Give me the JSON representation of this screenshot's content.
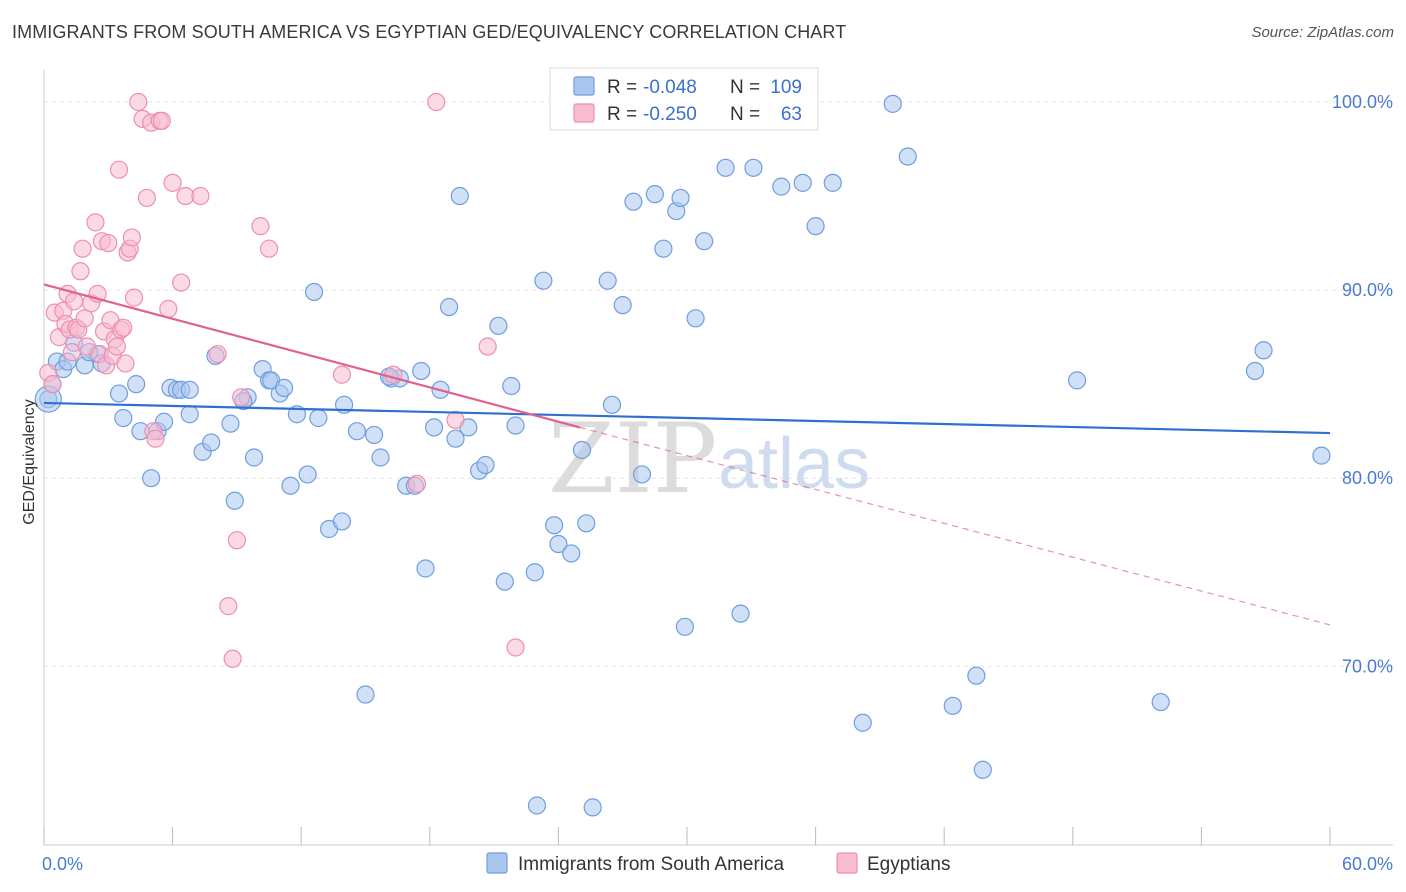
{
  "header": {
    "title": "IMMIGRANTS FROM SOUTH AMERICA VS EGYPTIAN GED/EQUIVALENCY CORRELATION CHART",
    "source": "Source: ZipAtlas.com"
  },
  "watermark": {
    "zip": "ZIP",
    "atlas": "atlas"
  },
  "colors": {
    "blue_fill": "#a9c6ee",
    "blue_stroke": "#6f9ee0",
    "blue_line": "#2f6fd0",
    "pink_fill": "#f7bcd0",
    "pink_stroke": "#ee8fb0",
    "pink_line": "#e0608e",
    "grid": "#e6e6e6",
    "tick_label": "#4a7bd0"
  },
  "legend": {
    "rows": [
      {
        "r_label": "R =",
        "r_value": "-0.048",
        "n_label": "N =",
        "n_value": "109"
      },
      {
        "r_label": "R =",
        "r_value": "-0.250",
        "n_label": "N =",
        "n_value": "63"
      }
    ]
  },
  "chart_data": {
    "type": "scatter",
    "title": "IMMIGRANTS FROM SOUTH AMERICA VS EGYPTIAN GED/EQUIVALENCY CORRELATION CHART",
    "xlabel": "",
    "ylabel": "GED/Equivalency",
    "xlim": [
      0,
      60
    ],
    "ylim": [
      60.5,
      101.7
    ],
    "x_tick_labels": [
      "0.0%",
      "60.0%"
    ],
    "y_ticks": [
      100,
      90,
      80,
      70
    ],
    "y_tick_labels": [
      "100.0%",
      "90.0%",
      "80.0%",
      "70.0%"
    ],
    "series": [
      {
        "name": "Immigrants from South America",
        "color": "blue",
        "trend": {
          "x0": 0,
          "y0": 84.0,
          "x1": 60,
          "y1": 82.4,
          "dashed_from": null
        },
        "points": [
          [
            0.2,
            84.2
          ],
          [
            0.6,
            86.2
          ],
          [
            0.9,
            85.8
          ],
          [
            1.4,
            87.2
          ],
          [
            1.9,
            86.0
          ],
          [
            2.5,
            86.6
          ],
          [
            2.7,
            86.1
          ],
          [
            3.5,
            84.5
          ],
          [
            3.7,
            83.2
          ],
          [
            4.3,
            85.0
          ],
          [
            4.5,
            82.5
          ],
          [
            5.0,
            80.0
          ],
          [
            5.3,
            82.5
          ],
          [
            5.6,
            83.0
          ],
          [
            5.9,
            84.8
          ],
          [
            6.2,
            84.7
          ],
          [
            6.4,
            84.7
          ],
          [
            6.8,
            83.4
          ],
          [
            7.4,
            81.4
          ],
          [
            7.8,
            81.9
          ],
          [
            8.0,
            86.5
          ],
          [
            8.7,
            82.9
          ],
          [
            8.9,
            78.8
          ],
          [
            9.5,
            84.3
          ],
          [
            9.8,
            81.1
          ],
          [
            10.2,
            85.8
          ],
          [
            10.5,
            85.2
          ],
          [
            11.0,
            84.5
          ],
          [
            11.5,
            79.6
          ],
          [
            11.8,
            83.4
          ],
          [
            12.3,
            80.2
          ],
          [
            12.6,
            89.9
          ],
          [
            12.8,
            83.2
          ],
          [
            13.3,
            77.3
          ],
          [
            13.9,
            77.7
          ],
          [
            14.0,
            83.9
          ],
          [
            14.6,
            82.5
          ],
          [
            15.0,
            68.5
          ],
          [
            15.4,
            82.3
          ],
          [
            15.7,
            81.1
          ],
          [
            16.2,
            85.3
          ],
          [
            16.6,
            85.3
          ],
          [
            16.9,
            79.6
          ],
          [
            17.3,
            79.6
          ],
          [
            17.6,
            85.7
          ],
          [
            17.8,
            75.2
          ],
          [
            18.2,
            82.7
          ],
          [
            18.5,
            84.7
          ],
          [
            18.9,
            89.1
          ],
          [
            19.2,
            82.1
          ],
          [
            19.4,
            95.0
          ],
          [
            19.8,
            82.7
          ],
          [
            20.3,
            80.4
          ],
          [
            20.6,
            80.7
          ],
          [
            21.2,
            88.1
          ],
          [
            21.5,
            74.5
          ],
          [
            21.8,
            84.9
          ],
          [
            22.0,
            82.8
          ],
          [
            22.9,
            75.0
          ],
          [
            23.0,
            62.6
          ],
          [
            23.3,
            90.5
          ],
          [
            23.8,
            77.5
          ],
          [
            24.0,
            76.5
          ],
          [
            24.6,
            76.0
          ],
          [
            25.1,
            81.5
          ],
          [
            25.3,
            77.6
          ],
          [
            25.6,
            62.5
          ],
          [
            26.3,
            90.5
          ],
          [
            26.5,
            83.9
          ],
          [
            27.0,
            89.2
          ],
          [
            27.5,
            94.7
          ],
          [
            27.9,
            80.2
          ],
          [
            28.5,
            95.1
          ],
          [
            28.9,
            92.2
          ],
          [
            29.5,
            94.2
          ],
          [
            29.7,
            94.9
          ],
          [
            29.9,
            72.1
          ],
          [
            30.4,
            88.5
          ],
          [
            30.8,
            92.6
          ],
          [
            31.8,
            96.5
          ],
          [
            32.5,
            72.8
          ],
          [
            33.1,
            96.5
          ],
          [
            34.4,
            95.5
          ],
          [
            35.4,
            95.7
          ],
          [
            36.0,
            93.4
          ],
          [
            36.8,
            95.7
          ],
          [
            38.2,
            67.0
          ],
          [
            39.6,
            99.9
          ],
          [
            40.3,
            97.1
          ],
          [
            42.4,
            67.9
          ],
          [
            43.5,
            69.5
          ],
          [
            43.8,
            64.5
          ],
          [
            48.2,
            85.2
          ],
          [
            52.1,
            68.1
          ],
          [
            56.5,
            85.7
          ],
          [
            56.9,
            86.8
          ],
          [
            59.6,
            81.2
          ],
          [
            0.4,
            85.0
          ],
          [
            1.1,
            86.2
          ],
          [
            2.1,
            86.7
          ],
          [
            6.8,
            84.7
          ],
          [
            9.3,
            84.1
          ],
          [
            10.6,
            85.2
          ],
          [
            11.2,
            84.8
          ],
          [
            16.1,
            85.4
          ]
        ]
      },
      {
        "name": "Egyptians",
        "color": "pink",
        "trend": {
          "x0": 0,
          "y0": 90.3,
          "x1": 25.0,
          "y1": 82.7,
          "dashed_from": 25.0,
          "dashed_to_x": 60,
          "dashed_to_y": 72.2
        },
        "points": [
          [
            0.2,
            85.6
          ],
          [
            0.4,
            85.0
          ],
          [
            0.5,
            88.8
          ],
          [
            0.7,
            87.5
          ],
          [
            0.9,
            88.9
          ],
          [
            1.0,
            88.2
          ],
          [
            1.1,
            89.8
          ],
          [
            1.2,
            87.9
          ],
          [
            1.3,
            86.7
          ],
          [
            1.4,
            89.4
          ],
          [
            1.5,
            88.0
          ],
          [
            1.6,
            87.9
          ],
          [
            1.7,
            91.0
          ],
          [
            1.8,
            92.2
          ],
          [
            1.9,
            88.5
          ],
          [
            2.0,
            87.0
          ],
          [
            2.2,
            89.3
          ],
          [
            2.4,
            93.6
          ],
          [
            2.5,
            89.8
          ],
          [
            2.6,
            86.6
          ],
          [
            2.7,
            92.6
          ],
          [
            2.8,
            87.8
          ],
          [
            2.9,
            86.0
          ],
          [
            3.0,
            92.5
          ],
          [
            3.1,
            88.4
          ],
          [
            3.2,
            86.5
          ],
          [
            3.3,
            87.4
          ],
          [
            3.4,
            87.0
          ],
          [
            3.5,
            96.4
          ],
          [
            3.6,
            87.9
          ],
          [
            3.7,
            88.0
          ],
          [
            3.8,
            86.1
          ],
          [
            3.9,
            92.0
          ],
          [
            4.0,
            92.2
          ],
          [
            4.1,
            92.8
          ],
          [
            4.2,
            89.6
          ],
          [
            4.4,
            100.0
          ],
          [
            4.6,
            99.1
          ],
          [
            4.8,
            94.9
          ],
          [
            5.0,
            98.9
          ],
          [
            5.1,
            82.5
          ],
          [
            5.2,
            82.1
          ],
          [
            5.4,
            99.0
          ],
          [
            5.5,
            99.0
          ],
          [
            5.8,
            89.0
          ],
          [
            6.0,
            95.7
          ],
          [
            6.4,
            90.4
          ],
          [
            6.6,
            95.0
          ],
          [
            7.3,
            95.0
          ],
          [
            8.1,
            86.6
          ],
          [
            8.6,
            73.2
          ],
          [
            8.8,
            70.4
          ],
          [
            9.0,
            76.7
          ],
          [
            9.2,
            84.3
          ],
          [
            10.1,
            93.4
          ],
          [
            10.5,
            92.2
          ],
          [
            13.9,
            85.5
          ],
          [
            16.3,
            85.5
          ],
          [
            17.4,
            79.7
          ],
          [
            18.3,
            100.0
          ],
          [
            19.2,
            83.1
          ],
          [
            20.7,
            87.0
          ],
          [
            22.0,
            71.0
          ]
        ]
      }
    ],
    "legend_labels": [
      "Immigrants from South America",
      "Egyptians"
    ],
    "legend_position": "top-center"
  }
}
